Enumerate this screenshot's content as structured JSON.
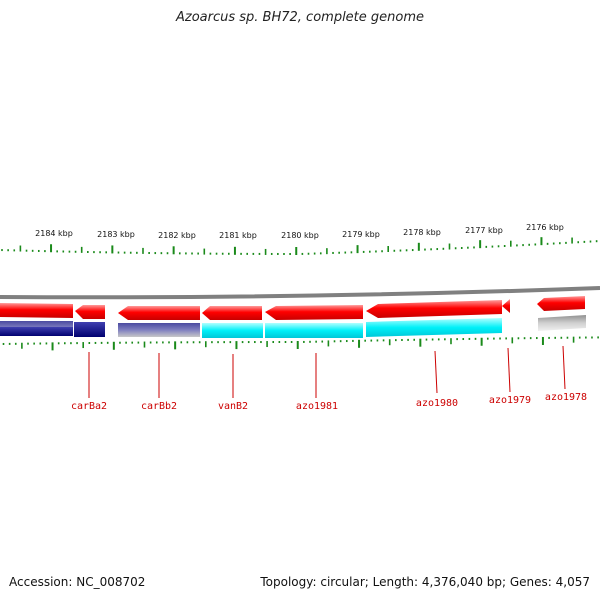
{
  "title": "Azoarcus sp. BH72, complete genome",
  "scale": {
    "labels": [
      "2184 kbp",
      "2183 kbp",
      "2182 kbp",
      "2181 kbp",
      "2180 kbp",
      "2179 kbp",
      "2178 kbp",
      "2177 kbp",
      "2176 kbp"
    ]
  },
  "genes": [
    {
      "label": "carBa2",
      "strand": "reverse"
    },
    {
      "label": "carBb2",
      "strand": "reverse"
    },
    {
      "label": "vanB2",
      "strand": "reverse"
    },
    {
      "label": "azo1981",
      "strand": "reverse"
    },
    {
      "label": "azo1980",
      "strand": "reverse"
    },
    {
      "label": "azo1979",
      "strand": "reverse"
    },
    {
      "label": "azo1978",
      "strand": "reverse"
    }
  ],
  "colors": {
    "gene": "#ff0000",
    "label": "#cc0000",
    "tick": "#1a8a1a",
    "backbone": "#808080",
    "navy": "#000080",
    "slate": "#5050a0",
    "cyan": "#00e5ee",
    "grey": "#b8b8b8"
  },
  "footer": {
    "accession": "Accession: NC_008702",
    "summary": "Topology: circular; Length: 4,376,040 bp; Genes: 4,057"
  }
}
